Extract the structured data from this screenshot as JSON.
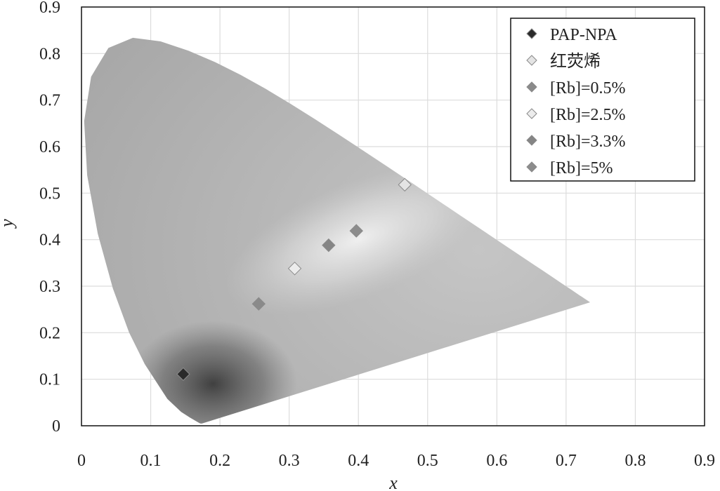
{
  "chart_data": {
    "type": "scatter",
    "xlabel": "x",
    "ylabel": "y",
    "xlim": [
      0,
      0.9
    ],
    "ylim": [
      0,
      0.9
    ],
    "x_ticks": [
      "0",
      "0.1",
      "0.2",
      "0.3",
      "0.4",
      "0.5",
      "0.6",
      "0.7",
      "0.8",
      "0.9"
    ],
    "y_ticks": [
      "0",
      "0.1",
      "0.2",
      "0.3",
      "0.4",
      "0.5",
      "0.6",
      "0.7",
      "0.8",
      "0.9"
    ],
    "grid": true,
    "legend_position": "top-right",
    "background": "CIE 1931 chromaticity diagram",
    "series": [
      {
        "name": "PAP-NPA",
        "x": [
          0.147
        ],
        "y": [
          0.111
        ],
        "color": "#2a2a2a"
      },
      {
        "name": "红荧烯",
        "x": [
          0.467
        ],
        "y": [
          0.518
        ],
        "color": "#e4e4e4"
      },
      {
        "name": "[Rb]=0.5%",
        "x": [
          0.256
        ],
        "y": [
          0.262
        ],
        "color": "#8a8a8a"
      },
      {
        "name": "[Rb]=2.5%",
        "x": [
          0.308
        ],
        "y": [
          0.338
        ],
        "color": "#ececec"
      },
      {
        "name": "[Rb]=3.3%",
        "x": [
          0.357
        ],
        "y": [
          0.388
        ],
        "color": "#858585"
      },
      {
        "name": "[Rb]=5%",
        "x": [
          0.397
        ],
        "y": [
          0.419
        ],
        "color": "#8c8c8c"
      }
    ]
  }
}
